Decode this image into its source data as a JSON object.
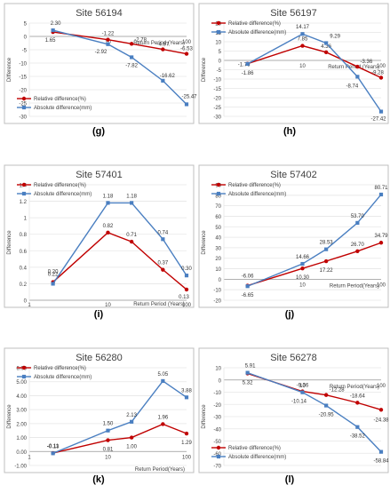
{
  "colors": {
    "relative": "#c00000",
    "absolute": "#4a7fc1",
    "frame": "#bfbfbf",
    "grid": "#e6e6e6",
    "text": "#404040"
  },
  "chart_data": [
    {
      "id": "g",
      "type": "line",
      "title": "Site 56194",
      "panel_label": "(g)",
      "xscale": "log",
      "xlim": [
        1,
        100
      ],
      "ylim": [
        -30,
        5
      ],
      "yticks": [
        5,
        0,
        -5,
        -10,
        -15,
        -20,
        -25,
        -30
      ],
      "xticks": [
        {
          "v": 10,
          "label": "10"
        },
        {
          "v": 100,
          "label": "100"
        }
      ],
      "ylabel": "Difference",
      "xlabel": "Return Period (Years)",
      "xlabel_v": 0,
      "legend": {
        "position": "bottom-left"
      },
      "series": [
        {
          "name": "Relative difference(%)",
          "key": "relative",
          "marker": "circle",
          "x": [
            2,
            10,
            20,
            50,
            100
          ],
          "y": [
            1.65,
            -1.22,
            -2.78,
            -4.87,
            -6.53
          ],
          "labels": [
            "1.65",
            "-1.22",
            "-2.78",
            "-4.87",
            "-6.53"
          ]
        },
        {
          "name": "Absolute difference(mm)",
          "key": "absolute",
          "marker": "square",
          "x": [
            2,
            10,
            20,
            50,
            100
          ],
          "y": [
            2.3,
            -2.92,
            -7.82,
            -16.62,
            -25.47
          ],
          "labels": [
            "2.30",
            "-2.92",
            "-7.82",
            "-16.62",
            "-25.47"
          ]
        }
      ]
    },
    {
      "id": "h",
      "type": "line",
      "title": "Site 56197",
      "panel_label": "(h)",
      "xscale": "log",
      "xlim": [
        1,
        100
      ],
      "ylim": [
        -30,
        20
      ],
      "yticks": [
        20,
        15,
        10,
        5,
        0,
        -5,
        -10,
        -15,
        -20,
        -25,
        -30
      ],
      "xticks": [
        {
          "v": 10,
          "label": "10"
        },
        {
          "v": 100,
          "label": "100"
        }
      ],
      "ylabel": "Difference",
      "xlabel": "Return Period (Years)",
      "xlabel_v": 0,
      "legend": {
        "position": "top-left"
      },
      "series": [
        {
          "name": "Relative difference(%)",
          "key": "relative",
          "marker": "circle",
          "x": [
            2,
            10,
            20,
            50,
            100
          ],
          "y": [
            -1.76,
            7.85,
            4.36,
            -3.36,
            -9.28
          ],
          "labels": [
            "-1.76",
            "7.85",
            "4.36",
            "-3.36",
            "-9.28"
          ]
        },
        {
          "name": "Absolute difference(mm)",
          "key": "absolute",
          "marker": "square",
          "x": [
            2,
            10,
            20,
            50,
            100
          ],
          "y": [
            -1.86,
            14.17,
            9.29,
            -8.74,
            -27.42
          ],
          "labels": [
            "-1.86",
            "14.17",
            "9.29",
            "-8.74",
            "-27.42"
          ]
        }
      ]
    },
    {
      "id": "i",
      "type": "line",
      "title": "Site 57401",
      "panel_label": "(i)",
      "xscale": "log",
      "xlim": [
        1,
        100
      ],
      "ylim": [
        0,
        1.4
      ],
      "yticks": [
        1.4,
        1.2,
        1,
        0.8,
        0.6,
        0.4,
        0.2,
        0
      ],
      "xticks": [
        {
          "v": 1,
          "label": "1"
        },
        {
          "v": 10,
          "label": "10"
        },
        {
          "v": 100,
          "label": "100"
        }
      ],
      "ylabel": "Difference",
      "xlabel": "Return Period (Years)",
      "xlabel_v": 0,
      "legend": {
        "position": "top-left"
      },
      "series": [
        {
          "name": "Relative difference(%)",
          "key": "relative",
          "marker": "circle",
          "x": [
            2,
            10,
            20,
            50,
            100
          ],
          "y": [
            0.22,
            0.82,
            0.71,
            0.37,
            0.13
          ],
          "labels": [
            "0.22",
            "0.82",
            "0.71",
            "0.37",
            "0.13"
          ]
        },
        {
          "name": "Absolute difference(mm)",
          "key": "absolute",
          "marker": "square",
          "x": [
            2,
            10,
            20,
            50,
            100
          ],
          "y": [
            0.2,
            1.18,
            1.18,
            0.74,
            0.3
          ],
          "labels": [
            "0.20",
            "1.18",
            "1.18",
            "0.74",
            "0.30"
          ]
        }
      ]
    },
    {
      "id": "j",
      "type": "line",
      "title": "Site 57402",
      "panel_label": "(j)",
      "xscale": "log",
      "xlim": [
        1,
        100
      ],
      "ylim": [
        -20,
        90
      ],
      "yticks": [
        90,
        80,
        70,
        60,
        50,
        40,
        30,
        20,
        10,
        0,
        -10,
        -20
      ],
      "xticks": [
        {
          "v": 10,
          "label": "10"
        },
        {
          "v": 100,
          "label": "100"
        }
      ],
      "ylabel": "Difference",
      "xlabel": "Return Period(Years)",
      "xlabel_v": 0,
      "legend": {
        "position": "top-left"
      },
      "series": [
        {
          "name": "Relative difference(%)",
          "key": "relative",
          "marker": "circle",
          "x": [
            2,
            10,
            20,
            50,
            100
          ],
          "y": [
            -6.06,
            10.3,
            17.22,
            26.7,
            34.79
          ],
          "labels": [
            "-6.06",
            "10.30",
            "17.22",
            "26.70",
            "34.79"
          ]
        },
        {
          "name": "Absolute difference(mm)",
          "key": "absolute",
          "marker": "square",
          "x": [
            2,
            10,
            20,
            50,
            100
          ],
          "y": [
            -6.65,
            14.66,
            28.53,
            53.7,
            80.71
          ],
          "labels": [
            "-6.65",
            "14.66",
            "28.53",
            "53.70",
            "80.71"
          ]
        }
      ]
    },
    {
      "id": "k",
      "type": "line",
      "title": "Site 56280",
      "panel_label": "(k)",
      "xscale": "log",
      "xlim": [
        1,
        100
      ],
      "ylim": [
        -1,
        6
      ],
      "yticks": [
        6,
        5,
        4,
        3,
        2,
        1,
        0,
        -1
      ],
      "ytick_format": "2dp",
      "xticks": [
        {
          "v": 1,
          "label": "1"
        },
        {
          "v": 10,
          "label": "10"
        },
        {
          "v": 100,
          "label": "100"
        }
      ],
      "ylabel": "Difference",
      "xlabel": "Return Period(Years)",
      "xlabel_v": -1,
      "legend": {
        "position": "top-left"
      },
      "series": [
        {
          "name": "Relative difference(%)",
          "key": "relative",
          "marker": "circle",
          "x": [
            2,
            10,
            20,
            50,
            100
          ],
          "y": [
            -0.11,
            0.81,
            1.0,
            1.96,
            1.29
          ],
          "labels": [
            "-0.11",
            "0.81",
            "1.00",
            "1.96",
            "1.29"
          ]
        },
        {
          "name": "Absolute difference(mm)",
          "key": "absolute",
          "marker": "square",
          "x": [
            2,
            10,
            20,
            50,
            100
          ],
          "y": [
            -0.13,
            1.5,
            2.13,
            5.05,
            3.88
          ],
          "labels": [
            "-0.13",
            "1.50",
            "2.13",
            "5.05",
            "3.88"
          ]
        }
      ]
    },
    {
      "id": "l",
      "type": "line",
      "title": "Site 56278",
      "panel_label": "(l)",
      "xscale": "log",
      "xlim": [
        1,
        100
      ],
      "ylim": [
        -70,
        10
      ],
      "yticks": [
        10,
        0,
        -10,
        -20,
        -30,
        -40,
        -50,
        -60,
        -70
      ],
      "xticks": [
        {
          "v": 10,
          "label": "10"
        },
        {
          "v": 100,
          "label": "100"
        }
      ],
      "ylabel": "Difference",
      "xlabel": "Return Period(Years)",
      "xlabel_v": 0,
      "legend": {
        "position": "bottom-left"
      },
      "series": [
        {
          "name": "Relative difference(%)",
          "key": "relative",
          "marker": "circle",
          "x": [
            2,
            10,
            20,
            50,
            100
          ],
          "y": [
            5.32,
            -9.36,
            -12.28,
            -18.64,
            -24.38
          ],
          "labels": [
            "5.32",
            "-9.36",
            "-12.28",
            "-18.64",
            "-24.38"
          ]
        },
        {
          "name": "Absolute difference(mm)",
          "key": "absolute",
          "marker": "square",
          "x": [
            2,
            10,
            20,
            50,
            100
          ],
          "y": [
            5.91,
            -10.14,
            -20.95,
            -38.52,
            -58.84
          ],
          "labels": [
            "5.91",
            "-10.14",
            "-20.95",
            "-38.52",
            "-58.84"
          ]
        }
      ]
    }
  ]
}
